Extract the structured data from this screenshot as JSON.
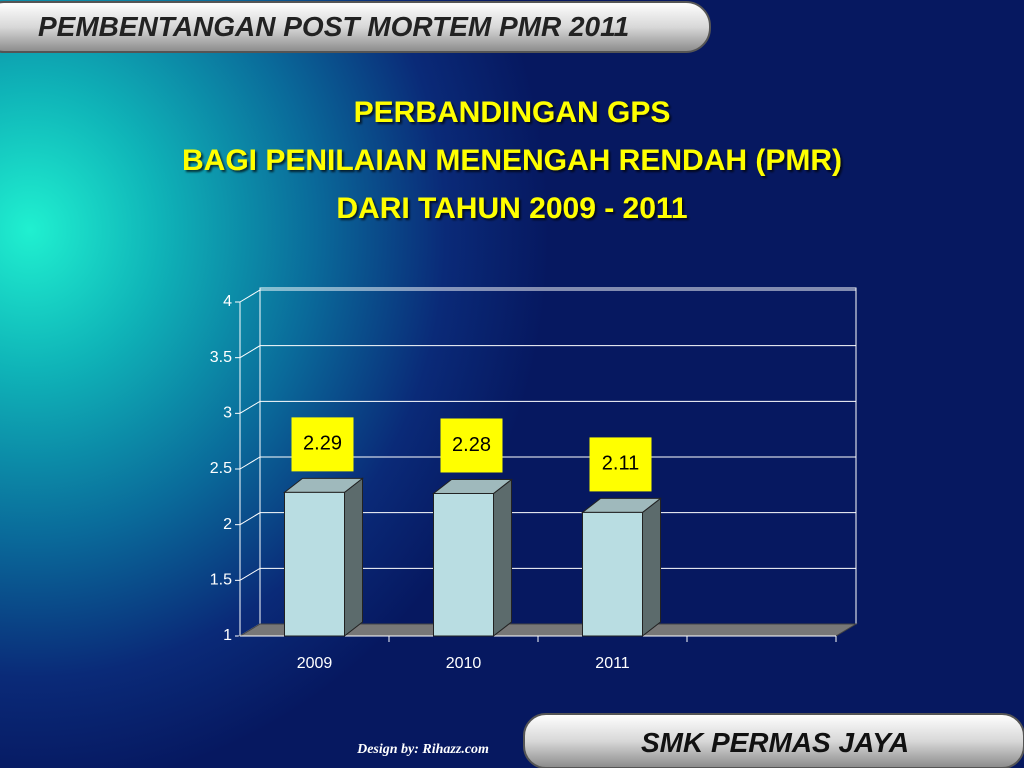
{
  "header": {
    "title": "PEMBENTANGAN POST MORTEM PMR 2011"
  },
  "chart_data": {
    "type": "bar3d",
    "title": [
      "PERBANDINGAN GPS",
      "BAGI PENILAIAN MENENGAH RENDAH (PMR)",
      "DARI TAHUN 2009 - 2011"
    ],
    "categories": [
      "2009",
      "2010",
      "2011",
      null
    ],
    "values": [
      2.29,
      2.28,
      2.11,
      null
    ],
    "color": "#b9dde2",
    "ylim": [
      1,
      4
    ],
    "yticks": [
      1,
      1.5,
      2,
      2.5,
      3,
      3.5,
      4
    ],
    "grid": true
  },
  "footer": {
    "credit": "Design by: Rihazz.com",
    "school": "SMK PERMAS JAYA"
  }
}
